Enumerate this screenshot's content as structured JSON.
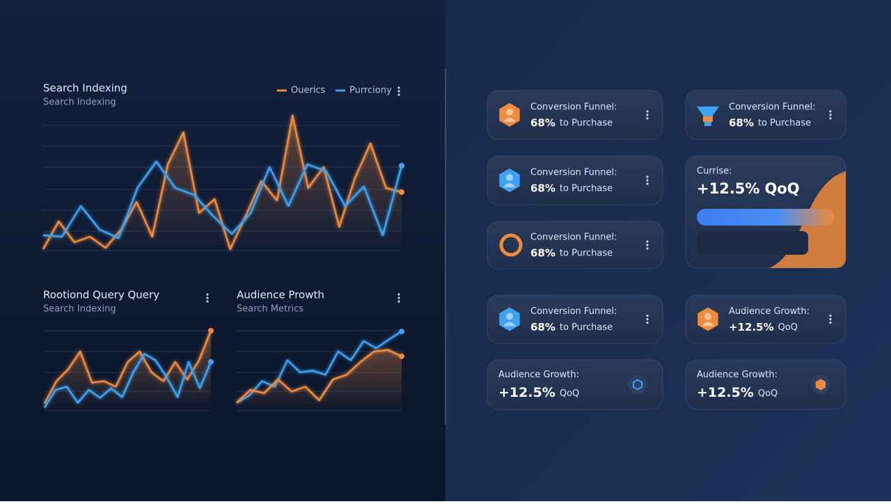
{
  "charts": [
    {
      "title": "Search Indexing",
      "subtitle": "Search Indexing",
      "ylim": [
        0,
        100
      ],
      "series": [
        {
          "name": "Ouerics",
          "color": "#f08a3c",
          "values": [
            1,
            21,
            6,
            10,
            2,
            15,
            35,
            10,
            62,
            85,
            27,
            37,
            1,
            25,
            50,
            36,
            97,
            45,
            60,
            17,
            52,
            77,
            45,
            42
          ]
        },
        {
          "name": "Purrciony",
          "color": "#3ea2f2",
          "values": [
            11,
            10,
            32,
            15,
            9,
            45,
            64,
            45,
            40,
            25,
            12,
            27,
            60,
            32,
            62,
            57,
            32,
            46,
            11,
            61
          ]
        }
      ]
    },
    {
      "title": "Rootiond Query Query",
      "subtitle": "Search Indexing",
      "ylim": [
        0,
        100
      ],
      "series": [
        {
          "color": "#f08a3c",
          "values": [
            9,
            37,
            52,
            74,
            35,
            37,
            30,
            61,
            74,
            48,
            37,
            61,
            39,
            63,
            100
          ]
        },
        {
          "color": "#3ea2f2",
          "values": [
            4,
            26,
            30,
            10,
            26,
            16,
            28,
            17,
            48,
            71,
            63,
            42,
            17,
            61,
            28,
            61
          ]
        }
      ]
    },
    {
      "title": "Audience Prowth",
      "subtitle": "Search Metrics",
      "ylim": [
        0,
        100
      ],
      "series": [
        {
          "color": "#3ea2f2",
          "values": [
            10,
            19,
            37,
            30,
            63,
            48,
            50,
            45,
            74,
            63,
            87,
            78,
            89,
            99
          ]
        },
        {
          "color": "#f08a3c",
          "values": [
            10,
            26,
            22,
            39,
            24,
            30,
            13,
            39,
            45,
            61,
            74,
            76,
            68
          ]
        }
      ]
    }
  ],
  "cards": [
    {
      "label": "Conversion Funnel:",
      "value": "68%",
      "suffix": "to Purchase"
    },
    {
      "label": "Conversion Funnel:",
      "value": "68%",
      "suffix": "to Purchase"
    },
    {
      "label": "Conversion Funnel:",
      "value": "68%",
      "suffix": "to Purchase"
    },
    {
      "label": "Currise:",
      "value": "+12.5%",
      "suffix": "QoQ"
    },
    {
      "label": "Conversion Funnel:",
      "value": "68%",
      "suffix": "to Purchase"
    },
    {
      "label": "Conversion Funnel:",
      "value": "68%",
      "suffix": "to Purchase"
    },
    {
      "label": "Audience Growth:",
      "value": "+12.5%",
      "suffix": "QoQ"
    },
    {
      "label": "Audience Growth:",
      "value": "+12.5%",
      "suffix": "QoQ"
    },
    {
      "label": "Audience Growth:",
      "value": "+12.5%",
      "suffix": "QoQ"
    }
  ]
}
